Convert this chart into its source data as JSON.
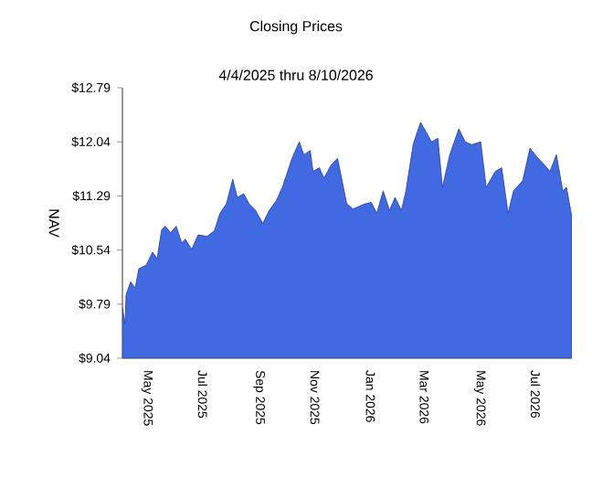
{
  "chart_data": {
    "type": "area",
    "title": "Closing Prices",
    "subtitle": "4/4/2025 thru 8/10/2026",
    "ylabel": "NAV",
    "x": [
      "2025-04-04",
      "2025-04-07",
      "2025-04-08",
      "2025-04-13",
      "2025-04-18",
      "2025-04-22",
      "2025-04-30",
      "2025-05-07",
      "2025-05-12",
      "2025-05-17",
      "2025-05-21",
      "2025-05-27",
      "2025-06-02",
      "2025-06-08",
      "2025-06-12",
      "2025-06-19",
      "2025-06-26",
      "2025-07-06",
      "2025-07-14",
      "2025-07-20",
      "2025-07-27",
      "2025-08-03",
      "2025-08-08",
      "2025-08-15",
      "2025-08-21",
      "2025-08-28",
      "2025-09-05",
      "2025-09-12",
      "2025-09-20",
      "2025-09-27",
      "2025-10-07",
      "2025-10-15",
      "2025-10-20",
      "2025-10-27",
      "2025-10-30",
      "2025-11-06",
      "2025-11-11",
      "2025-11-19",
      "2025-11-26",
      "2025-12-06",
      "2025-12-13",
      "2025-12-26",
      "2026-01-02",
      "2026-01-08",
      "2026-01-15",
      "2026-01-22",
      "2026-01-28",
      "2026-02-04",
      "2026-02-09",
      "2026-02-17",
      "2026-02-25",
      "2026-03-03",
      "2026-03-09",
      "2026-03-16",
      "2026-03-21",
      "2026-03-29",
      "2026-04-08",
      "2026-04-15",
      "2026-04-22",
      "2026-05-02",
      "2026-05-08",
      "2026-05-18",
      "2026-05-25",
      "2026-06-01",
      "2026-06-07",
      "2026-06-17",
      "2026-06-25",
      "2026-07-04",
      "2026-07-11",
      "2026-07-17",
      "2026-07-24",
      "2026-07-31",
      "2026-08-04",
      "2026-08-10"
    ],
    "values": [
      9.74,
      9.52,
      9.92,
      10.1,
      10.01,
      10.28,
      10.33,
      10.51,
      10.42,
      10.82,
      10.87,
      10.78,
      10.87,
      10.64,
      10.69,
      10.55,
      10.75,
      10.73,
      10.81,
      11.05,
      11.18,
      11.52,
      11.27,
      11.32,
      11.18,
      11.09,
      10.91,
      11.09,
      11.23,
      11.43,
      11.81,
      12.04,
      11.86,
      11.92,
      11.63,
      11.68,
      11.54,
      11.72,
      11.81,
      11.18,
      11.11,
      11.18,
      11.2,
      11.05,
      11.36,
      11.09,
      11.27,
      11.09,
      11.36,
      12.01,
      12.31,
      12.18,
      12.04,
      12.09,
      11.41,
      11.86,
      12.22,
      12.04,
      12.0,
      12.04,
      11.41,
      11.63,
      11.68,
      11.05,
      11.36,
      11.5,
      11.95,
      11.81,
      11.72,
      11.63,
      11.86,
      11.36,
      11.41,
      11.0
    ],
    "color": "#4169e1",
    "xlim": [
      "2025-04-04",
      "2026-08-10"
    ],
    "xticks": [
      {
        "value": "2025-05-01",
        "label": "May 2025"
      },
      {
        "value": "2025-07-01",
        "label": "Jul 2025"
      },
      {
        "value": "2025-09-01",
        "label": "Sep 2025"
      },
      {
        "value": "2025-11-01",
        "label": "Nov 2025"
      },
      {
        "value": "2026-01-01",
        "label": "Jan 2026"
      },
      {
        "value": "2026-03-01",
        "label": "Mar 2026"
      },
      {
        "value": "2026-05-01",
        "label": "May 2026"
      },
      {
        "value": "2026-07-01",
        "label": "Jul 2026"
      }
    ],
    "ylim": [
      9.04,
      12.79
    ],
    "yticks": [
      {
        "value": 9.04,
        "label": "$9.04"
      },
      {
        "value": 9.79,
        "label": "$9.79"
      },
      {
        "value": 10.54,
        "label": "$10.54"
      },
      {
        "value": 11.29,
        "label": "$11.29"
      },
      {
        "value": 12.04,
        "label": "$12.04"
      },
      {
        "value": 12.79,
        "label": "$12.79"
      }
    ],
    "grid": false
  }
}
